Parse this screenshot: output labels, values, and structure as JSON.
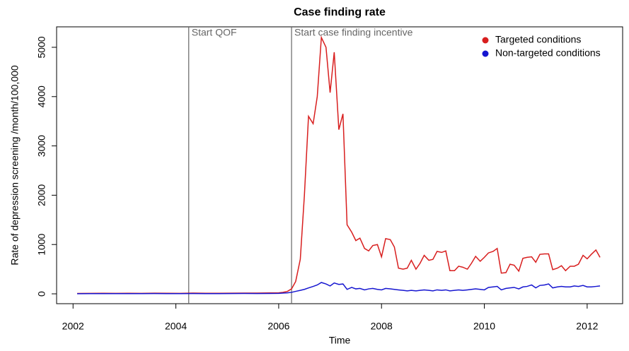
{
  "chart_data": {
    "type": "line",
    "title": "Case finding rate",
    "x_label": "Time",
    "y_label": "Rate of depression screening /month/100,000",
    "x": [
      2002.08,
      2002.33,
      2002.58,
      2002.83,
      2003.08,
      2003.33,
      2003.58,
      2003.83,
      2004.08,
      2004.33,
      2004.58,
      2004.83,
      2005.08,
      2005.33,
      2005.58,
      2005.83,
      2006.0,
      2006.08,
      2006.17,
      2006.25,
      2006.33,
      2006.42,
      2006.5,
      2006.58,
      2006.67,
      2006.75,
      2006.83,
      2006.92,
      2007.0,
      2007.08,
      2007.17,
      2007.25,
      2007.33,
      2007.42,
      2007.5,
      2007.58,
      2007.67,
      2007.75,
      2007.83,
      2007.92,
      2008.0,
      2008.08,
      2008.17,
      2008.25,
      2008.33,
      2008.42,
      2008.5,
      2008.58,
      2008.67,
      2008.75,
      2008.83,
      2008.92,
      2009.0,
      2009.08,
      2009.17,
      2009.25,
      2009.33,
      2009.42,
      2009.5,
      2009.58,
      2009.67,
      2009.75,
      2009.83,
      2009.92,
      2010.0,
      2010.08,
      2010.17,
      2010.25,
      2010.33,
      2010.42,
      2010.5,
      2010.58,
      2010.67,
      2010.75,
      2010.83,
      2010.92,
      2011.0,
      2011.08,
      2011.17,
      2011.25,
      2011.33,
      2011.42,
      2011.5,
      2011.58,
      2011.67,
      2011.75,
      2011.83,
      2011.92,
      2012.0,
      2012.08,
      2012.17,
      2012.25
    ],
    "series": [
      {
        "name": "Targeted conditions",
        "color": "#d81e1e",
        "values": [
          8,
          10,
          12,
          9,
          11,
          10,
          13,
          12,
          10,
          14,
          12,
          11,
          13,
          15,
          14,
          18,
          20,
          30,
          50,
          100,
          250,
          700,
          2000,
          3600,
          3450,
          4000,
          5200,
          5000,
          4080,
          4900,
          3330,
          3650,
          1400,
          1250,
          1080,
          1130,
          920,
          870,
          980,
          1000,
          750,
          1120,
          1100,
          950,
          520,
          500,
          520,
          680,
          500,
          620,
          780,
          680,
          700,
          860,
          840,
          870,
          470,
          470,
          560,
          540,
          500,
          620,
          760,
          660,
          740,
          830,
          860,
          920,
          420,
          430,
          600,
          580,
          460,
          720,
          740,
          750,
          640,
          800,
          810,
          810,
          490,
          520,
          570,
          470,
          560,
          560,
          600,
          780,
          710,
          800,
          890,
          740
        ]
      },
      {
        "name": "Non-targeted conditions",
        "color": "#1515d0",
        "values": [
          3,
          4,
          5,
          4,
          5,
          4,
          6,
          5,
          4,
          6,
          5,
          5,
          6,
          7,
          6,
          8,
          10,
          15,
          20,
          30,
          50,
          70,
          90,
          120,
          150,
          180,
          230,
          200,
          160,
          220,
          190,
          200,
          90,
          130,
          100,
          110,
          80,
          100,
          110,
          90,
          80,
          110,
          100,
          90,
          80,
          70,
          60,
          70,
          60,
          70,
          80,
          70,
          60,
          80,
          70,
          80,
          60,
          70,
          80,
          70,
          80,
          90,
          100,
          90,
          80,
          130,
          140,
          150,
          80,
          110,
          120,
          130,
          100,
          140,
          150,
          180,
          120,
          170,
          180,
          200,
          120,
          140,
          150,
          140,
          140,
          160,
          150,
          170,
          140,
          140,
          150,
          160
        ]
      }
    ],
    "annotations": [
      {
        "text": "Start QOF",
        "x": 2004.25
      },
      {
        "text": "Start case finding incentive",
        "x": 2006.25
      }
    ],
    "xlim": [
      2001.68,
      2012.69
    ],
    "xticks": [
      2002,
      2004,
      2006,
      2008,
      2010,
      2012
    ],
    "ylim": [
      -200,
      5415
    ],
    "yticks": [
      0,
      1000,
      2000,
      3000,
      4000,
      5000
    ],
    "legend": "top-right"
  }
}
